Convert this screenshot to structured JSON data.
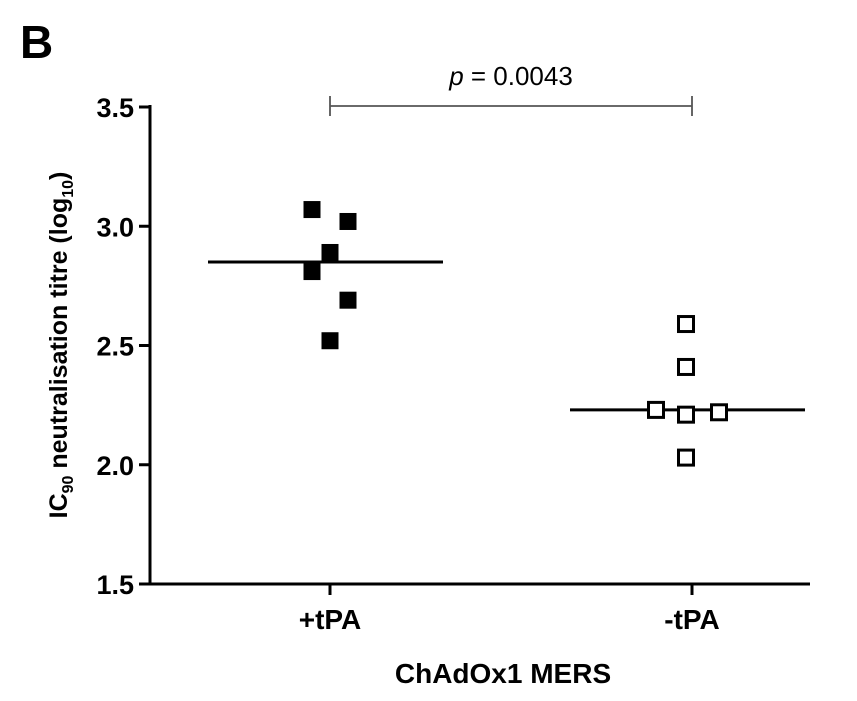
{
  "panel_label": "B",
  "chart_data": {
    "type": "scatter",
    "xlabel": "ChAdOx1 MERS",
    "ylabel": {
      "prefix": "IC",
      "sub1": "90",
      "middle": " neutralisation titre (log",
      "sub2": "10",
      "suffix": ")"
    },
    "ylim": [
      1.5,
      3.5
    ],
    "yticks": [
      "1.5",
      "2.0",
      "2.5",
      "3.0",
      "3.5"
    ],
    "categories": [
      "+tPA",
      "-tPA"
    ],
    "grid": false,
    "series": [
      {
        "category": "+tPA",
        "marker": "filled-square",
        "points": [
          {
            "y": 3.07,
            "offset": -0.06
          },
          {
            "y": 3.02,
            "offset": 0.06
          },
          {
            "y": 2.89,
            "offset": 0.0
          },
          {
            "y": 2.81,
            "offset": -0.06
          },
          {
            "y": 2.69,
            "offset": 0.06
          },
          {
            "y": 2.52,
            "offset": 0.0
          }
        ],
        "mean": 2.85
      },
      {
        "category": "-tPA",
        "marker": "open-square",
        "points": [
          {
            "y": 2.59,
            "offset": -0.02
          },
          {
            "y": 2.41,
            "offset": -0.02
          },
          {
            "y": 2.23,
            "offset": -0.12
          },
          {
            "y": 2.22,
            "offset": 0.09
          },
          {
            "y": 2.21,
            "offset": -0.02
          },
          {
            "y": 2.03,
            "offset": -0.02
          }
        ],
        "mean": 2.23
      }
    ],
    "annotation": {
      "p_symbol": "p",
      "p_rest": " = 0.0043",
      "between": [
        "+tPA",
        "-tPA"
      ]
    }
  }
}
